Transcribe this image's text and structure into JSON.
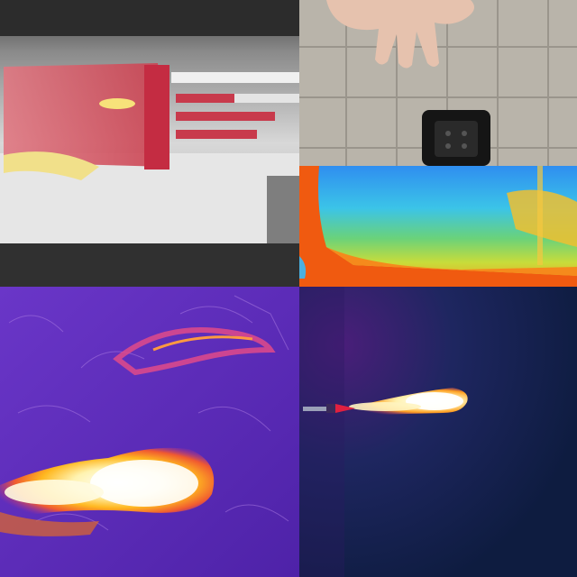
{
  "collage": {
    "panels": [
      {
        "name": "thermal-heatsink-grayscale",
        "palette": "grayscale-red-highlight",
        "colors": {
          "hot": "#d23a4a",
          "background": "#c8c8c8"
        }
      },
      {
        "name": "tiled-wall-hand-photo",
        "palette": "visible-light",
        "colors": {
          "tile": "#b9b4aa",
          "socket": "#151515"
        }
      },
      {
        "name": "thermal-wall-rainbow",
        "palette": "rainbow",
        "colors": {
          "cool": "#2aa6f5",
          "warm": "#f05a10"
        }
      },
      {
        "name": "thermal-grass-flame-ironbow",
        "palette": "ironbow",
        "colors": {
          "cool": "#5a2ab8",
          "hot": "#fff3b0"
        }
      },
      {
        "name": "thermal-torch-flame-ironbow",
        "palette": "ironbow",
        "colors": {
          "cool": "#14214a",
          "hot": "#fffbe0"
        }
      }
    ]
  }
}
